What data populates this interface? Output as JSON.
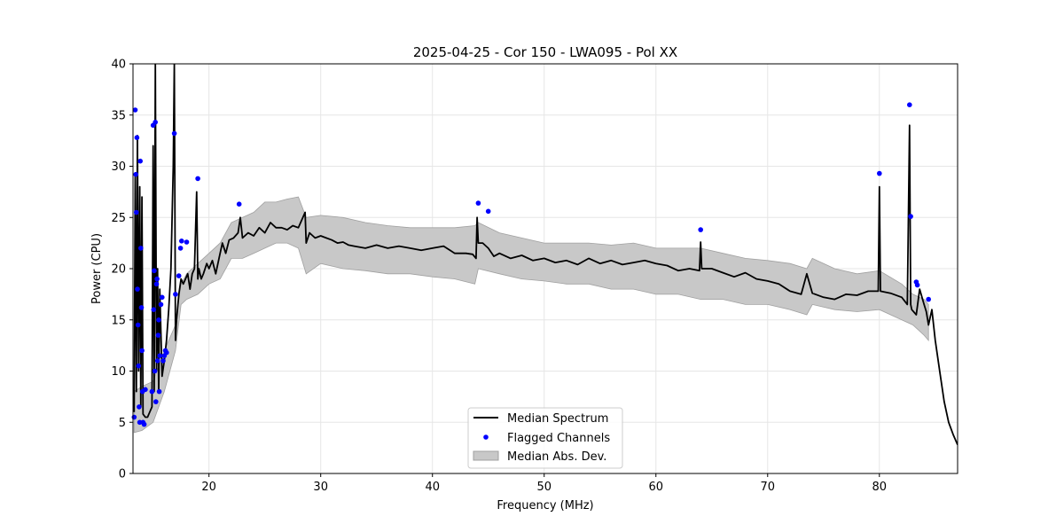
{
  "chart_data": {
    "type": "line",
    "title": "2025-04-25 - Cor 150 - LWA095 - Pol XX",
    "xlabel": "Frequency (MHz)",
    "ylabel": "Power (CPU)",
    "xlim": [
      13.2,
      87.0
    ],
    "ylim": [
      0,
      40
    ],
    "x_ticks": [
      20,
      30,
      40,
      50,
      60,
      70,
      80
    ],
    "y_ticks": [
      0,
      5,
      10,
      15,
      20,
      25,
      30,
      35,
      40
    ],
    "grid": true,
    "legend_position": "lower-center",
    "legend": {
      "median": "Median Spectrum",
      "flagged": "Flagged Channels",
      "mad": "Median Abs. Dev."
    },
    "colors": {
      "median": "#000000",
      "flagged": "#0000ff",
      "mad_fill": "#c8c8c8",
      "mad_edge": "#a0a0a0",
      "grid": "#e6e6e6"
    },
    "series": [
      {
        "name": "Median Spectrum",
        "x": [
          13.3,
          13.4,
          13.5,
          13.6,
          13.7,
          13.8,
          13.9,
          14.0,
          14.1,
          14.3,
          14.5,
          14.7,
          14.9,
          15.0,
          15.1,
          15.2,
          15.3,
          15.4,
          15.5,
          15.6,
          15.8,
          16.0,
          16.2,
          16.4,
          16.6,
          16.8,
          16.9,
          17.0,
          17.1,
          17.3,
          17.5,
          17.7,
          17.9,
          18.1,
          18.3,
          18.5,
          18.7,
          18.9,
          19.0,
          19.1,
          19.3,
          19.5,
          19.8,
          20.0,
          20.3,
          20.6,
          20.9,
          21.2,
          21.5,
          21.8,
          22.2,
          22.6,
          22.8,
          23.0,
          23.5,
          24.0,
          24.5,
          25.0,
          25.5,
          26.0,
          26.5,
          27.0,
          27.5,
          28.0,
          28.6,
          28.7,
          29.0,
          29.5,
          30.0,
          30.5,
          31.0,
          31.5,
          32.0,
          32.5,
          33.0,
          34.0,
          35.0,
          36.0,
          37.0,
          38.0,
          39.0,
          40.0,
          41.0,
          42.0,
          43.0,
          43.6,
          43.9,
          44.0,
          44.1,
          44.5,
          45.0,
          45.5,
          46.0,
          47.0,
          48.0,
          49.0,
          50.0,
          51.0,
          52.0,
          53.0,
          54.0,
          55.0,
          56.0,
          57.0,
          58.0,
          59.0,
          60.0,
          61.0,
          62.0,
          63.0,
          63.9,
          64.0,
          64.1,
          65.0,
          66.0,
          67.0,
          68.0,
          69.0,
          70.0,
          71.0,
          72.0,
          73.0,
          73.5,
          74.0,
          75.0,
          76.0,
          77.0,
          78.0,
          79.0,
          79.9,
          80.0,
          80.1,
          81.0,
          82.0,
          82.5,
          82.7,
          82.8,
          82.9,
          83.3,
          83.6,
          84.0,
          84.2,
          84.4,
          84.7,
          85.0,
          85.4,
          85.8,
          86.2,
          86.6,
          87.0
        ],
        "y": [
          6.0,
          29.0,
          8.0,
          33.0,
          10.0,
          28.0,
          6.5,
          27.0,
          5.8,
          5.5,
          5.5,
          6.0,
          6.5,
          32.0,
          8.0,
          40.0,
          10.0,
          20.0,
          8.0,
          18.0,
          9.5,
          11.0,
          13.0,
          16.0,
          20.0,
          30.0,
          40.0,
          13.0,
          15.0,
          17.5,
          19.0,
          18.5,
          19.0,
          19.5,
          18.0,
          19.5,
          20.0,
          27.5,
          19.0,
          20.0,
          19.0,
          19.5,
          20.5,
          20.0,
          20.8,
          19.5,
          21.0,
          22.5,
          21.5,
          22.8,
          23.0,
          23.5,
          25.0,
          23.0,
          23.5,
          23.2,
          24.0,
          23.5,
          24.5,
          24.0,
          24.0,
          23.8,
          24.2,
          24.0,
          25.5,
          22.5,
          23.5,
          23.0,
          23.2,
          23.0,
          22.8,
          22.5,
          22.6,
          22.3,
          22.2,
          22.0,
          22.3,
          22.0,
          22.2,
          22.0,
          21.8,
          22.0,
          22.2,
          21.5,
          21.5,
          21.4,
          21.0,
          25.0,
          22.5,
          22.5,
          22.0,
          21.2,
          21.5,
          21.0,
          21.3,
          20.8,
          21.0,
          20.6,
          20.8,
          20.4,
          21.0,
          20.5,
          20.8,
          20.4,
          20.6,
          20.8,
          20.5,
          20.3,
          19.8,
          20.0,
          19.8,
          22.6,
          20.0,
          20.0,
          19.6,
          19.2,
          19.6,
          19.0,
          18.8,
          18.5,
          17.8,
          17.5,
          19.5,
          17.6,
          17.2,
          17.0,
          17.5,
          17.4,
          17.8,
          17.8,
          28.0,
          17.8,
          17.6,
          17.2,
          16.5,
          34.0,
          16.5,
          16.0,
          15.5,
          18.0,
          16.5,
          15.8,
          14.5,
          16.0,
          13.0,
          10.0,
          7.0,
          5.0,
          3.8,
          2.8
        ]
      },
      {
        "name": "Median Abs. Dev.",
        "x": [
          13.3,
          14.0,
          15.0,
          16.0,
          17.0,
          17.5,
          18.0,
          19.0,
          20.0,
          21.0,
          22.0,
          23.0,
          24.0,
          25.0,
          26.0,
          27.0,
          28.0,
          28.7,
          30.0,
          32.0,
          34.0,
          36.0,
          38.0,
          40.0,
          42.0,
          43.8,
          44.1,
          46.0,
          48.0,
          50.0,
          52.0,
          54.0,
          56.0,
          58.0,
          60.0,
          62.0,
          64.0,
          66.0,
          68.0,
          70.0,
          72.0,
          73.5,
          74.0,
          76.0,
          78.0,
          80.0,
          82.0,
          83.0,
          84.0,
          84.4
        ],
        "lower": [
          4.0,
          4.2,
          5.0,
          8.0,
          12.0,
          16.5,
          17.0,
          17.5,
          18.5,
          19.0,
          21.0,
          21.0,
          21.5,
          22.0,
          22.5,
          22.5,
          22.0,
          19.5,
          20.5,
          20.0,
          19.8,
          19.5,
          19.5,
          19.2,
          19.0,
          18.5,
          20.0,
          19.5,
          19.0,
          18.8,
          18.5,
          18.5,
          18.0,
          18.0,
          17.5,
          17.5,
          17.0,
          17.0,
          16.5,
          16.5,
          16.0,
          15.5,
          16.5,
          16.0,
          15.8,
          16.0,
          15.0,
          14.5,
          13.5,
          13.0
        ],
        "upper": [
          8.0,
          8.5,
          9.0,
          12.0,
          14.5,
          18.5,
          19.5,
          20.5,
          21.5,
          22.5,
          24.5,
          25.0,
          25.5,
          26.5,
          26.5,
          26.8,
          27.0,
          25.0,
          25.2,
          25.0,
          24.5,
          24.2,
          24.0,
          24.0,
          24.0,
          24.2,
          24.5,
          23.5,
          23.0,
          22.5,
          22.5,
          22.5,
          22.3,
          22.5,
          22.0,
          22.0,
          22.0,
          21.5,
          21.0,
          20.8,
          20.5,
          20.0,
          21.0,
          20.0,
          19.5,
          19.8,
          18.5,
          17.5,
          17.0,
          16.5
        ]
      },
      {
        "name": "Flagged Channels",
        "x": [
          13.3,
          13.4,
          13.45,
          13.5,
          13.55,
          13.6,
          13.65,
          13.7,
          13.75,
          13.8,
          13.85,
          13.9,
          13.95,
          14.0,
          14.05,
          14.1,
          14.2,
          14.3,
          14.9,
          15.0,
          15.05,
          15.1,
          15.15,
          15.2,
          15.25,
          15.3,
          15.35,
          15.4,
          15.45,
          15.5,
          15.55,
          15.6,
          15.7,
          15.8,
          15.9,
          16.0,
          16.1,
          16.2,
          16.9,
          17.0,
          17.3,
          17.45,
          17.55,
          18.0,
          19.0,
          22.7,
          44.1,
          45.0,
          64.0,
          80.0,
          82.7,
          82.8,
          83.3,
          83.4,
          84.4
        ],
        "y": [
          5.5,
          35.5,
          29.2,
          25.5,
          32.8,
          18.0,
          14.5,
          10.5,
          6.5,
          5.0,
          30.5,
          22.0,
          16.2,
          12.0,
          8.0,
          5.0,
          4.8,
          8.2,
          8.0,
          34.0,
          16.0,
          19.8,
          10.0,
          34.3,
          7.0,
          18.5,
          19.0,
          11.0,
          13.5,
          15.0,
          8.0,
          11.5,
          16.5,
          17.2,
          11.0,
          11.5,
          12.0,
          11.8,
          33.2,
          17.5,
          19.3,
          22.0,
          22.7,
          22.6,
          28.8,
          26.3,
          26.4,
          25.6,
          23.8,
          29.3,
          36.0,
          25.1,
          18.7,
          18.4,
          17.0
        ]
      }
    ]
  }
}
